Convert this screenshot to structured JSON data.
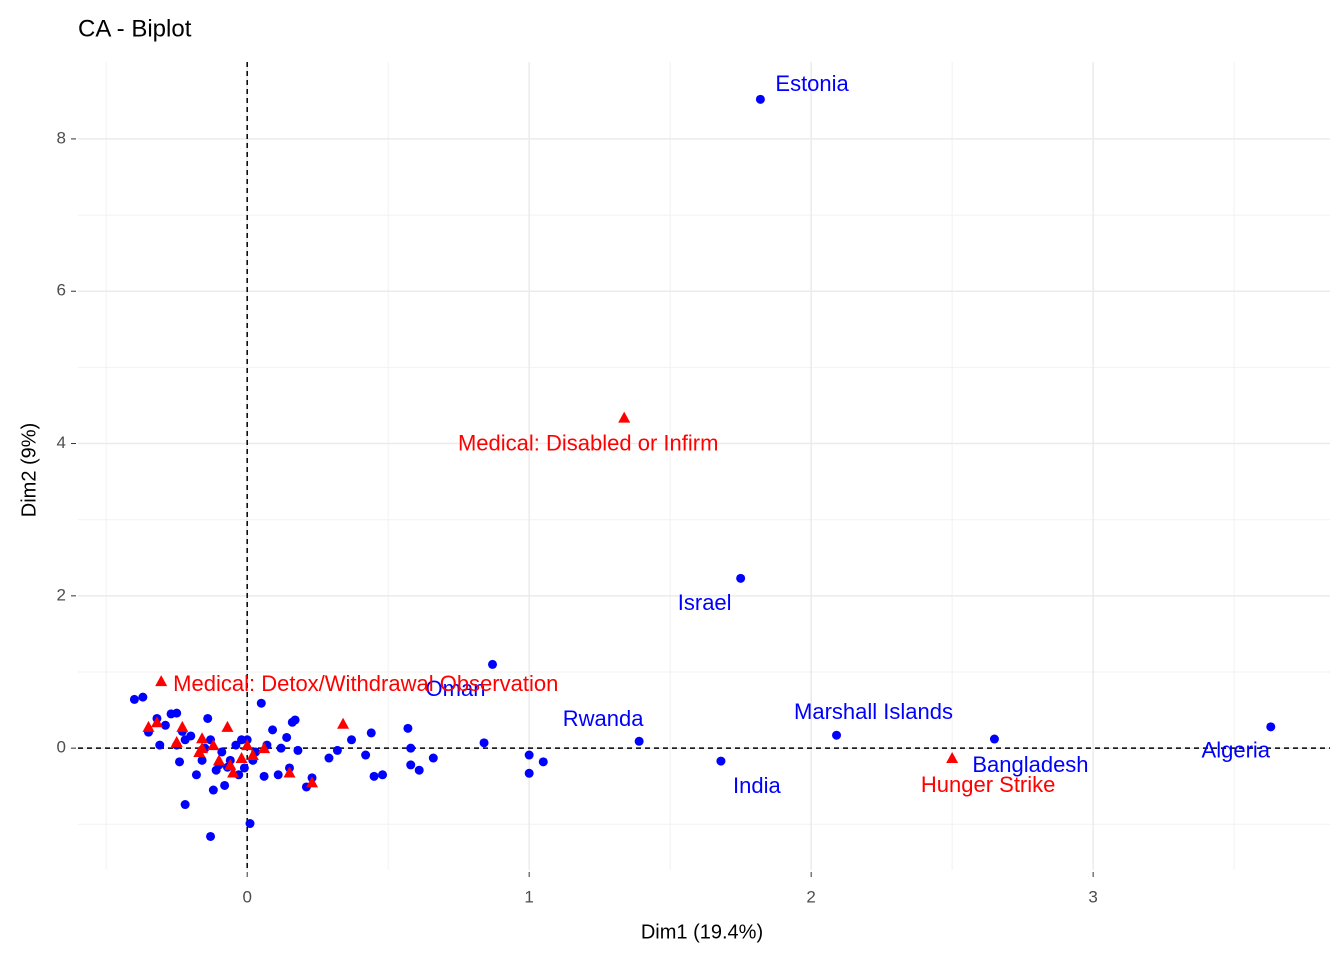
{
  "chart_data": {
    "type": "scatter",
    "title": "CA - Biplot",
    "x_label": "Dim1 (19.4%)",
    "y_label": "Dim2 (9%)",
    "xlim": [
      -0.6,
      3.84
    ],
    "ylim": [
      -1.6,
      9.01
    ],
    "xticks": [
      0,
      1,
      2,
      3
    ],
    "yticks": [
      0,
      2,
      4,
      6,
      8
    ],
    "x_minor_grid": [
      -0.5,
      0.5,
      1.5,
      2.5,
      3.5
    ],
    "y_minor_grid": [
      -1,
      1,
      3,
      5,
      7
    ],
    "grid": true,
    "reference_lines": [
      0,
      0
    ],
    "series": [
      {
        "color": "#0000ff",
        "marker": "circle",
        "labels": [
          "Estonia",
          "Israel",
          "Oman",
          "Rwanda",
          "Marshall Islands",
          "Bangladesh",
          "Algeria",
          "India",
          null,
          null,
          null,
          null,
          null,
          null,
          null,
          null,
          null,
          null,
          null,
          null,
          null,
          null,
          null,
          null,
          null,
          null,
          null,
          null,
          null,
          null,
          null,
          null,
          null,
          null,
          null,
          null,
          null,
          null,
          null,
          null,
          null,
          null,
          null,
          null,
          null,
          null,
          null,
          null,
          null,
          null,
          null,
          null,
          null,
          null,
          null,
          null,
          null,
          null,
          null,
          null,
          null,
          null,
          null,
          null,
          null,
          null,
          null,
          null,
          null,
          null
        ],
        "x": [
          1.82,
          1.75,
          0.87,
          1.39,
          2.09,
          2.65,
          3.63,
          1.68,
          -0.4,
          -0.37,
          -0.35,
          -0.31,
          -0.32,
          -0.29,
          -0.27,
          -0.25,
          -0.23,
          -0.25,
          -0.22,
          -0.2,
          -0.24,
          -0.22,
          -0.18,
          -0.16,
          -0.15,
          -0.14,
          -0.13,
          -0.12,
          -0.13,
          -0.11,
          -0.1,
          -0.09,
          -0.08,
          -0.07,
          -0.06,
          -0.04,
          -0.03,
          -0.02,
          -0.01,
          0.0,
          0.01,
          0.02,
          0.03,
          0.05,
          0.06,
          0.07,
          0.09,
          0.11,
          0.12,
          0.14,
          0.15,
          0.16,
          0.17,
          0.18,
          0.21,
          0.23,
          0.29,
          0.32,
          0.37,
          0.42,
          0.44,
          0.45,
          0.48,
          0.57,
          0.58,
          0.58,
          0.61,
          0.66,
          0.84,
          1.0,
          1.0,
          1.05
        ],
        "values": [
          8.52,
          2.23,
          1.1,
          0.09,
          0.17,
          0.12,
          0.28,
          -0.17,
          0.64,
          0.67,
          0.21,
          0.04,
          0.39,
          0.3,
          0.45,
          0.46,
          0.22,
          0.04,
          0.11,
          0.16,
          -0.18,
          -0.74,
          -0.35,
          -0.16,
          0.0,
          0.39,
          0.11,
          -0.55,
          -1.16,
          -0.29,
          -0.22,
          -0.05,
          -0.49,
          -0.25,
          -0.16,
          0.04,
          -0.35,
          0.11,
          -0.26,
          0.11,
          -0.99,
          -0.16,
          -0.05,
          0.59,
          -0.37,
          0.04,
          0.24,
          -0.35,
          0.0,
          0.14,
          -0.26,
          0.34,
          0.37,
          -0.03,
          -0.51,
          -0.39,
          -0.13,
          -0.03,
          0.11,
          -0.09,
          0.2,
          -0.37,
          -0.35,
          0.26,
          0.0,
          -0.22,
          -0.29,
          -0.13,
          0.07,
          -0.09,
          -0.33,
          -0.18
        ]
      },
      {
        "color": "#ff0000",
        "marker": "triangle",
        "labels": [
          "Medical: Disabled or Infirm",
          "Medical: Detox/Withdrawal Observation",
          "Hunger Strike",
          null,
          null,
          null,
          null,
          null,
          null,
          null,
          null,
          null,
          null,
          null,
          null,
          null,
          null,
          null,
          null,
          null,
          null,
          null
        ],
        "x": [
          1.337,
          -0.305,
          2.5,
          -0.35,
          -0.32,
          -0.25,
          -0.23,
          -0.16,
          -0.16,
          -0.12,
          -0.1,
          -0.07,
          -0.06,
          -0.05,
          -0.02,
          0.0,
          0.02,
          0.06,
          0.15,
          0.23,
          0.34,
          -0.17
        ],
        "values": [
          4.34,
          0.88,
          -0.13,
          0.28,
          0.34,
          0.08,
          0.28,
          0.13,
          0.0,
          0.04,
          -0.16,
          0.28,
          -0.22,
          -0.32,
          -0.13,
          0.04,
          -0.09,
          0.0,
          -0.32,
          -0.45,
          0.32,
          -0.05
        ]
      }
    ]
  }
}
